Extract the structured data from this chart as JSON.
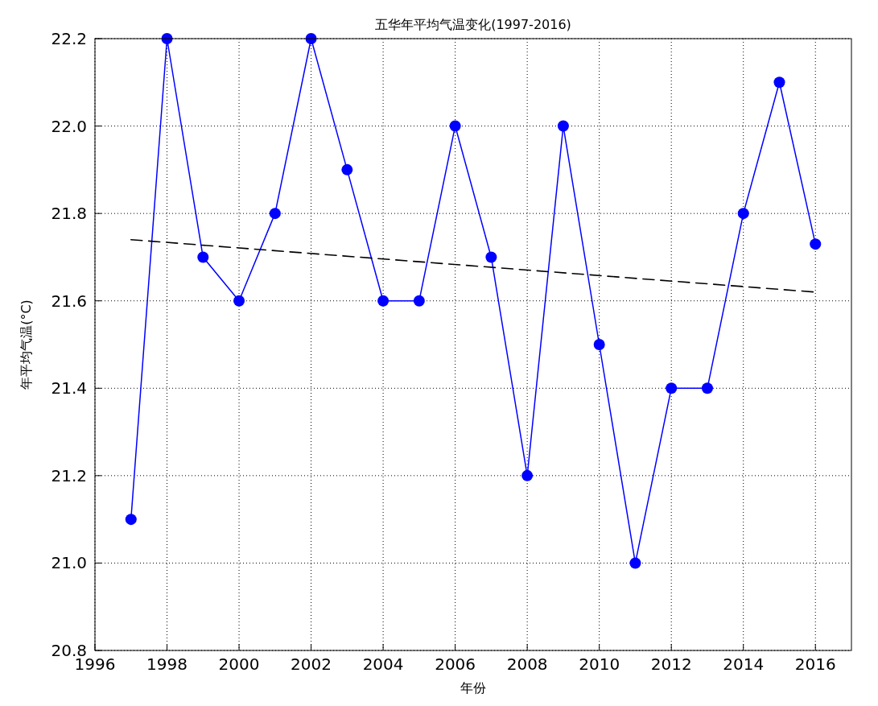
{
  "chart_data": {
    "type": "line",
    "title": "五华年平均气温变化(1997-2016)",
    "xlabel": "年份",
    "ylabel": "年平均气温(°C)",
    "x": [
      1997,
      1998,
      1999,
      2000,
      2001,
      2002,
      2003,
      2004,
      2005,
      2006,
      2007,
      2008,
      2009,
      2010,
      2011,
      2012,
      2013,
      2014,
      2015,
      2016
    ],
    "series": [
      {
        "color": "#0000ff",
        "marker": "circle",
        "line_style": "solid",
        "values": [
          21.1,
          22.2,
          21.7,
          21.6,
          21.8,
          22.2,
          21.9,
          21.6,
          21.6,
          22.0,
          21.7,
          21.2,
          22.0,
          21.5,
          21.0,
          21.4,
          21.4,
          21.8,
          22.1,
          21.73
        ]
      },
      {
        "type": "line",
        "color": "#000000",
        "marker": "none",
        "line_style": "dashed",
        "x": [
          1997,
          2016
        ],
        "values": [
          21.74,
          21.62
        ]
      }
    ],
    "xlim": [
      1996,
      2017
    ],
    "xticks": [
      1996,
      1998,
      2000,
      2002,
      2004,
      2006,
      2008,
      2010,
      2012,
      2014,
      2016
    ],
    "ylim": [
      20.8,
      22.2
    ],
    "yticks": [
      {
        "value": 20.8,
        "label": "20.8"
      },
      {
        "value": 21.0,
        "label": "21.0"
      },
      {
        "value": 21.2,
        "label": "21.2"
      },
      {
        "value": 21.4,
        "label": "21.4"
      },
      {
        "value": 21.6,
        "label": "21.6"
      },
      {
        "value": 21.8,
        "label": "21.8"
      },
      {
        "value": 22.0,
        "label": "22.0"
      },
      {
        "value": 22.2,
        "label": "22.2"
      }
    ],
    "grid": true
  }
}
